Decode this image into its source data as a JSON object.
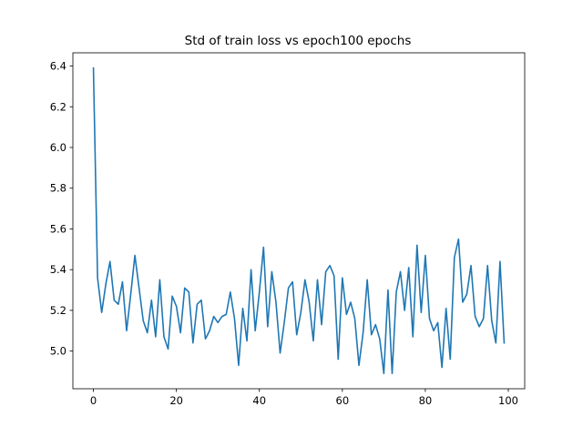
{
  "chart_data": {
    "type": "line",
    "title": "Std of train loss vs epoch100 epochs",
    "xlabel": "",
    "ylabel": "",
    "xlim": [
      -4.95,
      103.95
    ],
    "ylim": [
      4.815,
      6.465
    ],
    "x_ticks": [
      0,
      20,
      40,
      60,
      80,
      100
    ],
    "x_tick_labels": [
      "0",
      "20",
      "40",
      "60",
      "80",
      "100"
    ],
    "y_ticks": [
      5.0,
      5.2,
      5.4,
      5.6,
      5.8,
      6.0,
      6.2,
      6.4
    ],
    "y_tick_labels": [
      "5.0",
      "5.2",
      "5.4",
      "5.6",
      "5.8",
      "6.0",
      "6.2",
      "6.4"
    ],
    "grid": false,
    "line_color": "#1f77b4",
    "series": [
      {
        "x": [
          0,
          1,
          2,
          3,
          4,
          5,
          6,
          7,
          8,
          9,
          10,
          11,
          12,
          13,
          14,
          15,
          16,
          17,
          18,
          19,
          20,
          21,
          22,
          23,
          24,
          25,
          26,
          27,
          28,
          29,
          30,
          31,
          32,
          33,
          34,
          35,
          36,
          37,
          38,
          39,
          40,
          41,
          42,
          43,
          44,
          45,
          46,
          47,
          48,
          49,
          50,
          51,
          52,
          53,
          54,
          55,
          56,
          57,
          58,
          59,
          60,
          61,
          62,
          63,
          64,
          65,
          66,
          67,
          68,
          69,
          70,
          71,
          72,
          73,
          74,
          75,
          76,
          77,
          78,
          79,
          80,
          81,
          82,
          83,
          84,
          85,
          86,
          87,
          88,
          89,
          90,
          91,
          92,
          93,
          94,
          95,
          96,
          97,
          98,
          99
        ],
        "values": [
          6.39,
          5.36,
          5.19,
          5.33,
          5.44,
          5.25,
          5.23,
          5.34,
          5.1,
          5.28,
          5.47,
          5.31,
          5.15,
          5.09,
          5.25,
          5.07,
          5.35,
          5.07,
          5.01,
          5.27,
          5.22,
          5.09,
          5.31,
          5.29,
          5.04,
          5.23,
          5.25,
          5.06,
          5.1,
          5.17,
          5.14,
          5.17,
          5.18,
          5.29,
          5.16,
          4.93,
          5.21,
          5.05,
          5.4,
          5.1,
          5.29,
          5.51,
          5.12,
          5.39,
          5.24,
          4.99,
          5.14,
          5.31,
          5.34,
          5.08,
          5.19,
          5.35,
          5.24,
          5.05,
          5.35,
          5.13,
          5.39,
          5.42,
          5.37,
          4.96,
          5.36,
          5.18,
          5.24,
          5.16,
          4.93,
          5.09,
          5.35,
          5.08,
          5.13,
          5.06,
          4.89,
          5.3,
          4.89,
          5.29,
          5.39,
          5.2,
          5.41,
          5.07,
          5.52,
          5.19,
          5.47,
          5.16,
          5.1,
          5.14,
          4.92,
          5.21,
          4.96,
          5.46,
          5.55,
          5.24,
          5.28,
          5.42,
          5.17,
          5.12,
          5.16,
          5.42,
          5.15,
          5.04,
          5.44,
          5.04
        ]
      }
    ]
  }
}
